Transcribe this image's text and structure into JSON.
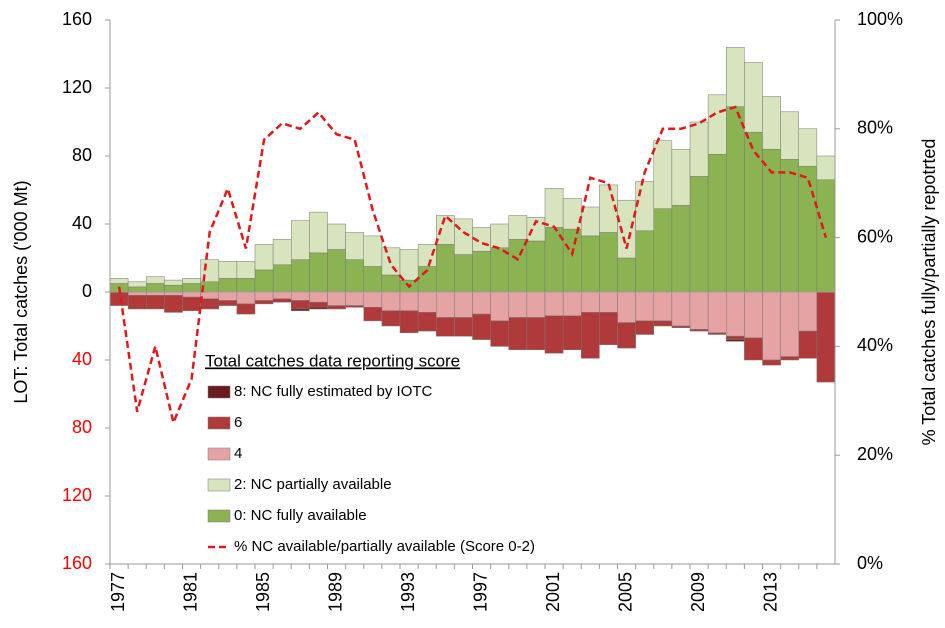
{
  "chart_data": {
    "type": "bar",
    "y_label": "LOT: Total catches ('000 Mt)",
    "y2_label": "% Total catches fully/partially repotrted",
    "legend_title": "Total catches data reporting score",
    "categories": [
      "1977",
      null,
      null,
      null,
      "1981",
      null,
      null,
      null,
      "1985",
      null,
      null,
      null,
      "1989",
      null,
      null,
      null,
      "1993",
      null,
      null,
      null,
      "1997",
      null,
      null,
      null,
      "2001",
      null,
      null,
      null,
      "2005",
      null,
      null,
      null,
      "2009",
      null,
      null,
      null,
      "2013",
      null,
      null,
      null
    ],
    "ylim": [
      -160,
      160
    ],
    "yticks": [
      {
        "value": -160,
        "label": "160"
      },
      {
        "value": -120,
        "label": "120"
      },
      {
        "value": -80,
        "label": "80"
      },
      {
        "value": -40,
        "label": "40"
      },
      0,
      40,
      80,
      120,
      160
    ],
    "negative_tick_color": "#ff0000",
    "y2lim": [
      0,
      100
    ],
    "y2ticks": [
      {
        "value": 0,
        "label": "0%"
      },
      {
        "value": 20,
        "label": "20%"
      },
      {
        "value": 40,
        "label": "40%"
      },
      {
        "value": 60,
        "label": "60%"
      },
      {
        "value": 80,
        "label": "80%"
      },
      {
        "value": 100,
        "label": "100%"
      }
    ],
    "series": [
      {
        "name": "8: NC fully estimated by IOTC",
        "color": "#6b1c1c",
        "values": [
          0,
          0,
          0,
          0,
          0,
          0,
          0,
          0,
          0,
          0,
          -1,
          -1,
          0,
          0,
          0,
          0,
          0,
          0,
          0,
          0,
          0,
          0,
          0,
          0,
          0,
          0,
          0,
          0,
          0,
          0,
          0,
          0,
          0,
          0,
          -1,
          0,
          0,
          0,
          0,
          0
        ]
      },
      {
        "name": "6",
        "color": "#b03a3a",
        "values": [
          -8,
          -8,
          -8,
          -10,
          -8,
          -6,
          -3,
          -6,
          -2,
          -2,
          -5,
          -3,
          -2,
          -1,
          -8,
          -9,
          -13,
          -11,
          -11,
          -11,
          -15,
          -15,
          -19,
          -19,
          -22,
          -20,
          -27,
          -19,
          -15,
          -8,
          -3,
          -1,
          -1,
          -1,
          -2,
          -13,
          -3,
          -2,
          -16,
          -53
        ]
      },
      {
        "name": "4",
        "color": "#e6a3a3",
        "values": [
          0,
          -2,
          -2,
          -2,
          -3,
          -4,
          -5,
          -7,
          -5,
          -4,
          -5,
          -6,
          -8,
          -8,
          -9,
          -11,
          -11,
          -12,
          -15,
          -15,
          -13,
          -17,
          -15,
          -15,
          -14,
          -14,
          -12,
          -12,
          -18,
          -17,
          -17,
          -20,
          -22,
          -24,
          -26,
          -27,
          -40,
          -38,
          -23,
          0
        ]
      },
      {
        "name": "2: NC partially available",
        "color": "#d7e4bd",
        "values": [
          3,
          3,
          4,
          3,
          3,
          13,
          10,
          10,
          15,
          15,
          23,
          24,
          15,
          16,
          18,
          16,
          18,
          13,
          17,
          21,
          14,
          14,
          14,
          14,
          23,
          18,
          17,
          28,
          34,
          29,
          40,
          33,
          32,
          35,
          35,
          41,
          31,
          28,
          22,
          14
        ]
      },
      {
        "name": "0: NC fully available",
        "color": "#8cb352",
        "values": [
          5,
          3,
          5,
          4,
          5,
          6,
          8,
          8,
          13,
          16,
          19,
          23,
          25,
          19,
          15,
          10,
          7,
          15,
          28,
          22,
          24,
          26,
          31,
          30,
          38,
          37,
          33,
          35,
          20,
          36,
          49,
          51,
          68,
          81,
          109,
          94,
          84,
          78,
          74,
          66
        ]
      },
      {
        "name": "% NC available/partially available (Score 0-2)",
        "type": "line",
        "axis": "y2",
        "color": "#e0191a",
        "dashed": true,
        "values": [
          51,
          28,
          40,
          26,
          34,
          61,
          69,
          58,
          78,
          81,
          80,
          83,
          79,
          78,
          65,
          55,
          51,
          54,
          64,
          61,
          59,
          58,
          56,
          63,
          62,
          57,
          71,
          70,
          58,
          72,
          80,
          80,
          81,
          83,
          84,
          76,
          72,
          72,
          71,
          60
        ]
      }
    ]
  }
}
